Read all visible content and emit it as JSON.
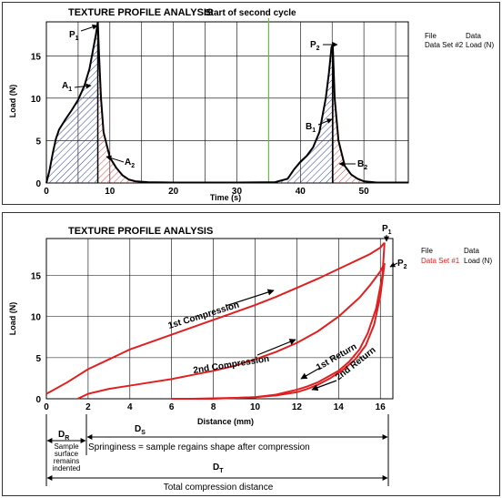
{
  "chart_data": [
    {
      "type": "line",
      "title": "TEXTURE PROFILE ANALYSIS",
      "xlabel": "Time (s)",
      "ylabel": "Load (N)",
      "xlim": [
        0,
        57
      ],
      "ylim": [
        0,
        19
      ],
      "xticks": [
        "0",
        "10",
        "20",
        "30",
        "40",
        "50"
      ],
      "yticks": [
        "0",
        "5",
        "10",
        "15"
      ],
      "grid": true,
      "series": [
        {
          "color": "#000000",
          "x": [
            0,
            0.5,
            1,
            1.5,
            2,
            3,
            4,
            5,
            6,
            6.8,
            7.3,
            7.8,
            8.1,
            8.3,
            8.6,
            9,
            10,
            11,
            12,
            13,
            14,
            16,
            20,
            30,
            36,
            38,
            39,
            40,
            41,
            42,
            43,
            44,
            44.5,
            44.9,
            45.1,
            45.4,
            46,
            47,
            48,
            49,
            50,
            52,
            57
          ],
          "y": [
            0,
            1.5,
            3.5,
            5.2,
            6.3,
            7.5,
            8.6,
            9.8,
            11.5,
            13.5,
            15.5,
            17.5,
            19,
            15,
            10,
            6,
            3,
            1.8,
            0.9,
            0.4,
            0.2,
            0.1,
            0.05,
            0.05,
            0.1,
            0.5,
            1.6,
            2.5,
            3.2,
            4.2,
            6,
            10,
            13,
            16,
            16.3,
            10,
            5,
            2,
            1,
            0.5,
            0.2,
            0.05,
            0.05
          ]
        }
      ],
      "vline": {
        "x": 35,
        "color": "#66bb44",
        "label": "Start of second cycle"
      },
      "annotations": [
        {
          "label": "P",
          "sub": "1"
        },
        {
          "label": "A",
          "sub": "1"
        },
        {
          "label": "A",
          "sub": "2"
        },
        {
          "label": "P",
          "sub": "2"
        },
        {
          "label": "B",
          "sub": "1"
        },
        {
          "label": "B",
          "sub": "2"
        }
      ],
      "legend": {
        "placement": "right",
        "col1": "File",
        "col2": "Data",
        "entry": "Data Set #2",
        "entry_unit": "Load (N)",
        "entry_color": "#000000"
      }
    },
    {
      "type": "line",
      "title": "TEXTURE PROFILE ANALYSIS",
      "xlabel": "Distance (mm)",
      "ylabel": "Load (N)",
      "xlim": [
        0,
        16.6
      ],
      "ylim": [
        0,
        19.5
      ],
      "xticks": [
        "0",
        "2",
        "4",
        "6",
        "8",
        "10",
        "12",
        "14",
        "16"
      ],
      "yticks": [
        "0",
        "5",
        "10",
        "15"
      ],
      "grid": true,
      "series": [
        {
          "name": "1st Compression",
          "color": "#e02020",
          "x": [
            0,
            1,
            2,
            3,
            4,
            5,
            6,
            7,
            8,
            9,
            10,
            11,
            12,
            13,
            14,
            15,
            15.5,
            16,
            16.2
          ],
          "y": [
            0.6,
            2,
            3.6,
            4.8,
            6,
            6.9,
            7.8,
            8.7,
            9.6,
            10.5,
            11.4,
            12.4,
            13.5,
            14.6,
            15.8,
            17,
            17.6,
            18.4,
            19
          ]
        },
        {
          "name": "1st Return",
          "color": "#e02020",
          "x": [
            16.2,
            16.1,
            15.8,
            15.4,
            15,
            14.5,
            14,
            13.5,
            13,
            12.5,
            12,
            11.5,
            11,
            10.5,
            10,
            9,
            8,
            7,
            6
          ],
          "y": [
            19,
            15,
            11,
            8,
            6,
            4.5,
            3.4,
            2.7,
            2,
            1.5,
            1.1,
            0.8,
            0.5,
            0.35,
            0.2,
            0.1,
            0.05,
            0,
            0
          ]
        },
        {
          "name": "2nd Compression",
          "color": "#e02020",
          "x": [
            1.5,
            2,
            3,
            4,
            5,
            6,
            7,
            8,
            9,
            10,
            11,
            12,
            13,
            14,
            15,
            15.5,
            16,
            16.2
          ],
          "y": [
            0,
            0.6,
            1.2,
            1.6,
            2,
            2.4,
            2.9,
            3.4,
            4,
            4.8,
            5.7,
            6.8,
            8.2,
            10,
            12.3,
            13.8,
            15.5,
            16.5
          ]
        },
        {
          "name": "2nd Return",
          "color": "#e02020",
          "x": [
            16.2,
            16,
            15.7,
            15.3,
            14.8,
            14.2,
            13.6,
            13,
            12.5,
            12,
            11,
            10,
            9,
            8,
            7
          ],
          "y": [
            16.5,
            12.5,
            9,
            6.5,
            4.8,
            3.5,
            2.5,
            1.7,
            1.2,
            0.8,
            0.4,
            0.2,
            0.1,
            0,
            0
          ]
        }
      ],
      "annotations": [
        {
          "label": "P",
          "sub": "1"
        },
        {
          "label": "P",
          "sub": "2"
        }
      ],
      "legend": {
        "placement": "right",
        "col1": "File",
        "col2": "Data",
        "entry": "Data Set #1",
        "entry_unit": "Load (N)",
        "entry_color": "#e02020"
      },
      "distances": {
        "dr_label": "D",
        "dr_sub": "R",
        "dr_text": [
          "Sample",
          "surface",
          "remains",
          "indented"
        ],
        "ds_label": "D",
        "ds_sub": "S",
        "ds_text": "Springiness = sample regains shape after compression",
        "dt_label": "D",
        "dt_sub": "T",
        "dt_text": "Total compression distance"
      }
    }
  ]
}
